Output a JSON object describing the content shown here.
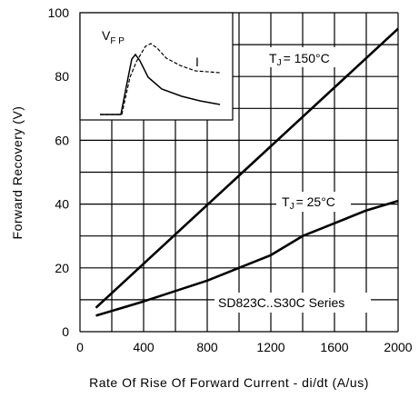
{
  "chart_data": {
    "type": "line",
    "title": "",
    "xlabel": "Rate Of Rise Of Forward Current - di/dt (A/us)",
    "ylabel": "Forward Recovery (V)",
    "xlim": [
      0,
      2000
    ],
    "ylim": [
      0,
      100
    ],
    "x_ticks": [
      "0",
      "400",
      "800",
      "1200",
      "1600",
      "2000"
    ],
    "y_ticks": [
      "0",
      "20",
      "40",
      "60",
      "80",
      "100"
    ],
    "grid": true,
    "series": [
      {
        "name": "TJ = 150°C",
        "x": [
          100,
          2000
        ],
        "y": [
          7.5,
          95
        ]
      },
      {
        "name": "TJ = 25°C",
        "x": [
          100,
          400,
          800,
          1200,
          1400,
          1600,
          1800,
          2000
        ],
        "y": [
          5,
          9.5,
          16,
          24,
          30,
          34,
          38,
          41
        ]
      }
    ],
    "annotations": {
      "tj150": {
        "main": "T",
        "sub": "J",
        "rest": "= 150°C"
      },
      "tj25": {
        "main": "T",
        "sub": "J",
        "rest": "= 25°C"
      },
      "series_label": "SD823C..S30C Series",
      "inset_vfp": {
        "main": "V",
        "sub": "F P"
      },
      "inset_i": "I"
    }
  }
}
